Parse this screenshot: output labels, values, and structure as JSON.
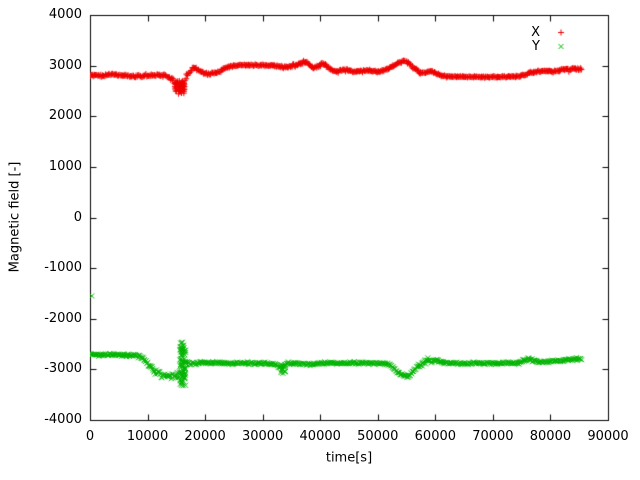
{
  "chart_data": {
    "type": "scatter",
    "title": "",
    "xlabel": "time[s]",
    "ylabel": "Magnetic field [-]",
    "xlim": [
      0,
      90000
    ],
    "ylim": [
      -4000,
      4000
    ],
    "grid": false,
    "legend": {
      "position": "top-right",
      "entries": [
        {
          "label": "X",
          "marker": "+",
          "color": "#ee0000"
        },
        {
          "label": "Y",
          "marker": "x",
          "color": "#00b400"
        }
      ]
    },
    "xtick_values": [
      0,
      10000,
      20000,
      30000,
      40000,
      50000,
      60000,
      70000,
      80000,
      90000
    ],
    "xtick_labels": [
      "0",
      "10000",
      "20000",
      "30000",
      "40000",
      "50000",
      "60000",
      "70000",
      "80000",
      "90000"
    ],
    "ytick_values": [
      -4000,
      -3000,
      -2000,
      -1000,
      0,
      1000,
      2000,
      3000,
      4000
    ],
    "ytick_labels": [
      "-4000",
      "-3000",
      "-2000",
      "-1000",
      "0",
      "1000",
      "2000",
      "3000",
      "4000"
    ],
    "series": [
      {
        "name": "X",
        "color": "#ee0000",
        "marker": "+",
        "keypoints": [
          [
            0,
            2820,
            35
          ],
          [
            2000,
            2800,
            35
          ],
          [
            4000,
            2830,
            35
          ],
          [
            6000,
            2800,
            35
          ],
          [
            8000,
            2790,
            40
          ],
          [
            10000,
            2800,
            40
          ],
          [
            12000,
            2820,
            45
          ],
          [
            13500,
            2790,
            50
          ],
          [
            14500,
            2700,
            80
          ],
          [
            15200,
            2560,
            90
          ],
          [
            15800,
            2520,
            90
          ],
          [
            16300,
            2600,
            80
          ],
          [
            16800,
            2780,
            60
          ],
          [
            17500,
            2900,
            50
          ],
          [
            18200,
            2950,
            45
          ],
          [
            19000,
            2900,
            45
          ],
          [
            20000,
            2850,
            40
          ],
          [
            21000,
            2830,
            40
          ],
          [
            22000,
            2860,
            40
          ],
          [
            23000,
            2920,
            35
          ],
          [
            24000,
            2980,
            30
          ],
          [
            25000,
            3000,
            25
          ],
          [
            26500,
            3010,
            25
          ],
          [
            28000,
            3010,
            22
          ],
          [
            30000,
            3005,
            22
          ],
          [
            32000,
            3000,
            25
          ],
          [
            33000,
            2990,
            30
          ],
          [
            34000,
            2965,
            35
          ],
          [
            35000,
            2985,
            40
          ],
          [
            36000,
            3010,
            45
          ],
          [
            37000,
            3060,
            45
          ],
          [
            37600,
            3070,
            40
          ],
          [
            38200,
            3000,
            45
          ],
          [
            39000,
            2955,
            45
          ],
          [
            40000,
            3000,
            50
          ],
          [
            40600,
            3040,
            45
          ],
          [
            41300,
            2970,
            40
          ],
          [
            42000,
            2905,
            40
          ],
          [
            43000,
            2880,
            35
          ],
          [
            44000,
            2915,
            35
          ],
          [
            45000,
            2900,
            35
          ],
          [
            46000,
            2875,
            35
          ],
          [
            47000,
            2885,
            35
          ],
          [
            48000,
            2905,
            30
          ],
          [
            49000,
            2890,
            30
          ],
          [
            50000,
            2880,
            30
          ],
          [
            51000,
            2900,
            30
          ],
          [
            52000,
            2950,
            35
          ],
          [
            53000,
            3020,
            40
          ],
          [
            54000,
            3080,
            40
          ],
          [
            54600,
            3100,
            40
          ],
          [
            55300,
            3060,
            40
          ],
          [
            56000,
            2985,
            45
          ],
          [
            57000,
            2900,
            45
          ],
          [
            57600,
            2855,
            40
          ],
          [
            58300,
            2875,
            40
          ],
          [
            59000,
            2880,
            35
          ],
          [
            60000,
            2860,
            35
          ],
          [
            61000,
            2805,
            30
          ],
          [
            62000,
            2785,
            25
          ],
          [
            63500,
            2780,
            22
          ],
          [
            65000,
            2778,
            20
          ],
          [
            67000,
            2776,
            20
          ],
          [
            69000,
            2778,
            20
          ],
          [
            71000,
            2780,
            20
          ],
          [
            73000,
            2780,
            22
          ],
          [
            74500,
            2790,
            25
          ],
          [
            75500,
            2820,
            30
          ],
          [
            76500,
            2855,
            35
          ],
          [
            77500,
            2885,
            35
          ],
          [
            78500,
            2900,
            35
          ],
          [
            79500,
            2890,
            35
          ],
          [
            80500,
            2885,
            38
          ],
          [
            81500,
            2905,
            40
          ],
          [
            82300,
            2940,
            40
          ],
          [
            83200,
            2905,
            42
          ],
          [
            84200,
            2950,
            40
          ],
          [
            85500,
            2920,
            38
          ]
        ],
        "bursts": [
          {
            "t0": 14800,
            "t1": 16500,
            "y0": 2440,
            "y1": 2700,
            "n": 45
          }
        ],
        "outliers": []
      },
      {
        "name": "Y",
        "color": "#00b400",
        "marker": "x",
        "keypoints": [
          [
            0,
            -2700,
            40
          ],
          [
            1500,
            -2715,
            40
          ],
          [
            3000,
            -2705,
            40
          ],
          [
            4500,
            -2715,
            40
          ],
          [
            6000,
            -2725,
            45
          ],
          [
            7500,
            -2720,
            45
          ],
          [
            8500,
            -2745,
            50
          ],
          [
            9500,
            -2800,
            60
          ],
          [
            10500,
            -2950,
            70
          ],
          [
            11500,
            -3060,
            70
          ],
          [
            12500,
            -3110,
            70
          ],
          [
            13500,
            -3130,
            80
          ],
          [
            14500,
            -3110,
            90
          ],
          [
            15300,
            -3150,
            100
          ],
          [
            16000,
            -2900,
            120
          ],
          [
            16600,
            -2870,
            70
          ],
          [
            17300,
            -2900,
            50
          ],
          [
            18000,
            -2885,
            45
          ],
          [
            19000,
            -2865,
            40
          ],
          [
            20000,
            -2870,
            40
          ],
          [
            22000,
            -2872,
            38
          ],
          [
            24000,
            -2880,
            38
          ],
          [
            26000,
            -2872,
            38
          ],
          [
            28000,
            -2880,
            38
          ],
          [
            30000,
            -2882,
            40
          ],
          [
            32000,
            -2900,
            45
          ],
          [
            33000,
            -2940,
            55
          ],
          [
            33500,
            -2960,
            70
          ],
          [
            34000,
            -2900,
            45
          ],
          [
            35000,
            -2885,
            42
          ],
          [
            36000,
            -2885,
            40
          ],
          [
            38000,
            -2900,
            40
          ],
          [
            40000,
            -2882,
            40
          ],
          [
            42000,
            -2872,
            38
          ],
          [
            44000,
            -2882,
            40
          ],
          [
            46000,
            -2880,
            38
          ],
          [
            48000,
            -2872,
            38
          ],
          [
            50000,
            -2880,
            38
          ],
          [
            52000,
            -2900,
            42
          ],
          [
            53000,
            -3000,
            50
          ],
          [
            54000,
            -3100,
            55
          ],
          [
            55000,
            -3150,
            55
          ],
          [
            55600,
            -3120,
            50
          ],
          [
            56300,
            -3005,
            50
          ],
          [
            57000,
            -2950,
            55
          ],
          [
            58000,
            -2870,
            60
          ],
          [
            58600,
            -2805,
            60
          ],
          [
            59300,
            -2850,
            55
          ],
          [
            60000,
            -2805,
            50
          ],
          [
            61000,
            -2855,
            45
          ],
          [
            62000,
            -2872,
            40
          ],
          [
            64000,
            -2882,
            38
          ],
          [
            66000,
            -2880,
            36
          ],
          [
            68000,
            -2872,
            36
          ],
          [
            70000,
            -2880,
            36
          ],
          [
            72000,
            -2872,
            36
          ],
          [
            74000,
            -2880,
            38
          ],
          [
            75000,
            -2855,
            45
          ],
          [
            76000,
            -2790,
            60
          ],
          [
            77000,
            -2825,
            50
          ],
          [
            78000,
            -2852,
            42
          ],
          [
            80000,
            -2850,
            40
          ],
          [
            82000,
            -2822,
            42
          ],
          [
            84000,
            -2805,
            40
          ],
          [
            85500,
            -2800,
            38
          ]
        ],
        "bursts": [
          {
            "t0": 15600,
            "t1": 16600,
            "y0": -3350,
            "y1": -2460,
            "n": 70
          },
          {
            "t0": 33000,
            "t1": 34000,
            "y0": -3080,
            "y1": -2900,
            "n": 12
          }
        ],
        "outliers": [
          [
            300,
            -1550
          ]
        ]
      }
    ]
  }
}
